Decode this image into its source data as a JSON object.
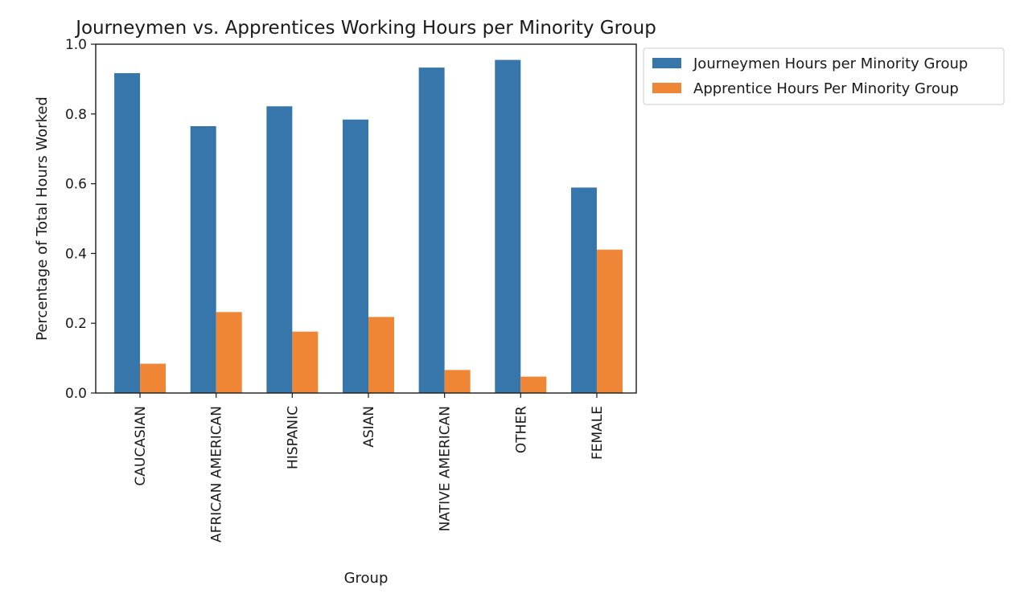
{
  "chart_data": {
    "type": "bar",
    "title": "Journeymen vs. Apprentices Working Hours per Minority Group",
    "xlabel": "Group",
    "ylabel": "Percentage of Total Hours Worked",
    "ylim": [
      0,
      1.0
    ],
    "yticks": [
      "0.0",
      "0.2",
      "0.4",
      "0.6",
      "0.8",
      "1.0"
    ],
    "categories": [
      "CAUCASIAN",
      "AFRICAN AMERICAN",
      "HISPANIC",
      "ASIAN",
      "NATIVE AMERICAN",
      "OTHER",
      "FEMALE"
    ],
    "series": [
      {
        "name": "Journeymen Hours per Minority Group",
        "color": "#3776ab",
        "values": [
          0.917,
          0.765,
          0.822,
          0.784,
          0.933,
          0.955,
          0.589
        ]
      },
      {
        "name": "Apprentice Hours Per Minority Group",
        "color": "#ee8636",
        "values": [
          0.084,
          0.232,
          0.176,
          0.218,
          0.066,
          0.047,
          0.411
        ]
      }
    ],
    "grid": false,
    "legend": "outside-top-right"
  }
}
